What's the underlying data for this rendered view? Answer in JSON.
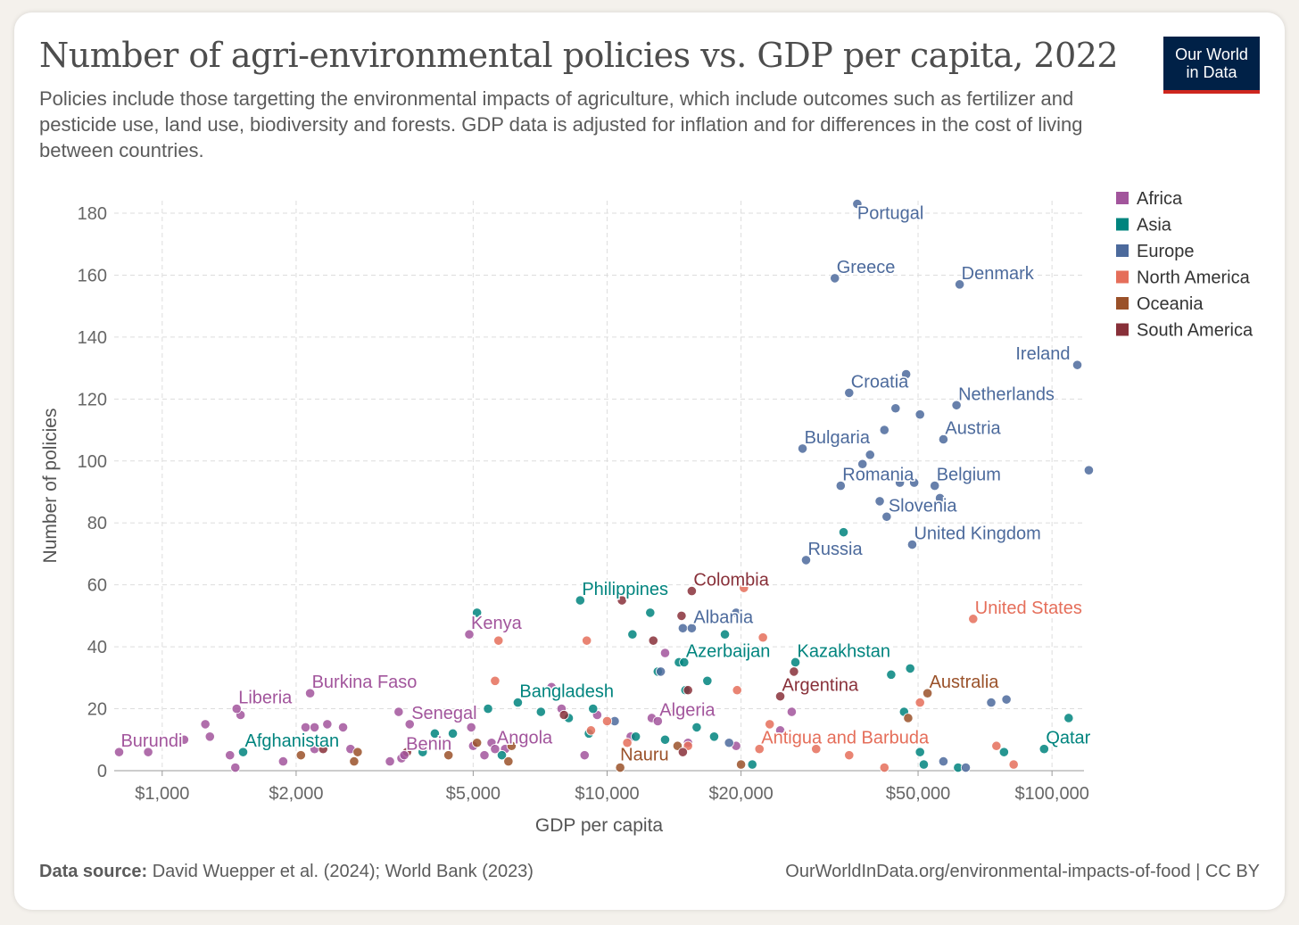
{
  "header": {
    "title": "Number of agri-environmental policies vs. GDP per capita, 2022",
    "subtitle": "Policies include those targetting the environmental impacts of agriculture, which include outcomes such as fertilizer and pesticide use, land use, biodiversity and forests. GDP data is adjusted for inflation and for differences in the cost of living between countries.",
    "logo_line1": "Our World",
    "logo_line2": "in Data"
  },
  "footer": {
    "source_label": "Data source:",
    "source_text": " David Wuepper et al. (2024); World Bank (2023)",
    "url": "OurWorldInData.org/environmental-impacts-of-food | CC BY"
  },
  "chart_data": {
    "type": "scatter",
    "xlabel": "GDP per capita",
    "ylabel": "Number of policies",
    "x_scale": "log",
    "xlim": [
      780,
      118000
    ],
    "ylim": [
      0,
      180
    ],
    "x_ticks": [
      {
        "value": 1000,
        "label": "$1,000"
      },
      {
        "value": 2000,
        "label": "$2,000"
      },
      {
        "value": 5000,
        "label": "$5,000"
      },
      {
        "value": 10000,
        "label": "$10,000"
      },
      {
        "value": 20000,
        "label": "$20,000"
      },
      {
        "value": 50000,
        "label": "$50,000"
      },
      {
        "value": 100000,
        "label": "$100,000"
      }
    ],
    "y_ticks": [
      0,
      20,
      40,
      60,
      80,
      100,
      120,
      140,
      160,
      180
    ],
    "grid": true,
    "legend_position": "right",
    "colors": {
      "Africa": "#a2559c",
      "Asia": "#00847e",
      "Europe": "#4c6a9c",
      "North America": "#e56e5a",
      "Oceania": "#9a5129",
      "South America": "#883039"
    },
    "legend": [
      "Africa",
      "Asia",
      "Europe",
      "North America",
      "Oceania",
      "South America"
    ],
    "labeled_points": [
      {
        "name": "Portugal",
        "region": "Europe",
        "x": 36500,
        "y": 183
      },
      {
        "name": "Greece",
        "region": "Europe",
        "x": 32500,
        "y": 159
      },
      {
        "name": "Denmark",
        "region": "Europe",
        "x": 62000,
        "y": 157
      },
      {
        "name": "Ireland",
        "region": "Europe",
        "x": 114000,
        "y": 131
      },
      {
        "name": "Croatia",
        "region": "Europe",
        "x": 35000,
        "y": 122
      },
      {
        "name": "Netherlands",
        "region": "Europe",
        "x": 61000,
        "y": 118
      },
      {
        "name": "Austria",
        "region": "Europe",
        "x": 57000,
        "y": 107
      },
      {
        "name": "Bulgaria",
        "region": "Europe",
        "x": 27500,
        "y": 104
      },
      {
        "name": "Romania",
        "region": "Europe",
        "x": 33500,
        "y": 92
      },
      {
        "name": "Belgium",
        "region": "Europe",
        "x": 54500,
        "y": 92
      },
      {
        "name": "Slovenia",
        "region": "Europe",
        "x": 42500,
        "y": 82
      },
      {
        "name": "United Kingdom",
        "region": "Europe",
        "x": 48500,
        "y": 73
      },
      {
        "name": "Russia",
        "region": "Europe",
        "x": 28000,
        "y": 68
      },
      {
        "name": "Colombia",
        "region": "South America",
        "x": 15500,
        "y": 58
      },
      {
        "name": "Philippines",
        "region": "Asia",
        "x": 8700,
        "y": 55
      },
      {
        "name": "United States",
        "region": "North America",
        "x": 66500,
        "y": 49
      },
      {
        "name": "Albania",
        "region": "Europe",
        "x": 15500,
        "y": 46
      },
      {
        "name": "Kenya",
        "region": "Africa",
        "x": 4900,
        "y": 44
      },
      {
        "name": "Azerbaijan",
        "region": "Asia",
        "x": 14900,
        "y": 35
      },
      {
        "name": "Kazakhstan",
        "region": "Asia",
        "x": 26500,
        "y": 35
      },
      {
        "name": "Burkina Faso",
        "region": "Africa",
        "x": 2150,
        "y": 25
      },
      {
        "name": "Argentina",
        "region": "South America",
        "x": 24500,
        "y": 24
      },
      {
        "name": "Australia",
        "region": "Oceania",
        "x": 52500,
        "y": 25
      },
      {
        "name": "Bangladesh",
        "region": "Asia",
        "x": 6300,
        "y": 22
      },
      {
        "name": "Liberia",
        "region": "Africa",
        "x": 1470,
        "y": 20
      },
      {
        "name": "Senegal",
        "region": "Africa",
        "x": 3600,
        "y": 15
      },
      {
        "name": "Algeria",
        "region": "Africa",
        "x": 13000,
        "y": 16
      },
      {
        "name": "Burundi",
        "region": "Africa",
        "x": 800,
        "y": 6
      },
      {
        "name": "Afghanistan",
        "region": "Asia",
        "x": 1520,
        "y": 6
      },
      {
        "name": "Benin",
        "region": "Africa",
        "x": 3500,
        "y": 5
      },
      {
        "name": "Angola",
        "region": "Africa",
        "x": 5600,
        "y": 7
      },
      {
        "name": "Antigua and Barbuda",
        "region": "North America",
        "x": 22000,
        "y": 7
      },
      {
        "name": "Qatar",
        "region": "Asia",
        "x": 96000,
        "y": 7
      },
      {
        "name": "Nauru",
        "region": "Oceania",
        "x": 10700,
        "y": 1
      }
    ],
    "points": [
      {
        "region": "Africa",
        "x": 930,
        "y": 6
      },
      {
        "region": "Africa",
        "x": 1120,
        "y": 10
      },
      {
        "region": "Africa",
        "x": 1250,
        "y": 15
      },
      {
        "region": "Africa",
        "x": 1280,
        "y": 11
      },
      {
        "region": "Africa",
        "x": 1420,
        "y": 5
      },
      {
        "region": "Africa",
        "x": 1460,
        "y": 1
      },
      {
        "region": "Africa",
        "x": 1500,
        "y": 18
      },
      {
        "region": "Africa",
        "x": 1870,
        "y": 3
      },
      {
        "region": "Africa",
        "x": 2100,
        "y": 14
      },
      {
        "region": "Africa",
        "x": 2200,
        "y": 14
      },
      {
        "region": "Africa",
        "x": 2350,
        "y": 15
      },
      {
        "region": "Africa",
        "x": 2550,
        "y": 14
      },
      {
        "region": "Africa",
        "x": 2650,
        "y": 7
      },
      {
        "region": "Africa",
        "x": 2200,
        "y": 7
      },
      {
        "region": "Africa",
        "x": 3250,
        "y": 3
      },
      {
        "region": "Africa",
        "x": 3400,
        "y": 19
      },
      {
        "region": "Africa",
        "x": 3450,
        "y": 4
      },
      {
        "region": "Africa",
        "x": 3900,
        "y": 8
      },
      {
        "region": "Africa",
        "x": 4950,
        "y": 14
      },
      {
        "region": "Africa",
        "x": 5000,
        "y": 8
      },
      {
        "region": "Africa",
        "x": 5300,
        "y": 5
      },
      {
        "region": "Africa",
        "x": 5500,
        "y": 9
      },
      {
        "region": "Africa",
        "x": 5900,
        "y": 7
      },
      {
        "region": "Africa",
        "x": 7500,
        "y": 27
      },
      {
        "region": "Africa",
        "x": 7900,
        "y": 20
      },
      {
        "region": "Africa",
        "x": 8900,
        "y": 5
      },
      {
        "region": "Africa",
        "x": 9500,
        "y": 18
      },
      {
        "region": "Africa",
        "x": 11300,
        "y": 11
      },
      {
        "region": "Africa",
        "x": 12600,
        "y": 17
      },
      {
        "region": "Africa",
        "x": 13500,
        "y": 38
      },
      {
        "region": "Africa",
        "x": 15200,
        "y": 9
      },
      {
        "region": "Africa",
        "x": 19500,
        "y": 8
      },
      {
        "region": "Africa",
        "x": 24500,
        "y": 13
      },
      {
        "region": "Africa",
        "x": 26000,
        "y": 19
      },
      {
        "region": "Asia",
        "x": 4100,
        "y": 12
      },
      {
        "region": "Asia",
        "x": 3850,
        "y": 6
      },
      {
        "region": "Asia",
        "x": 4500,
        "y": 12
      },
      {
        "region": "Asia",
        "x": 5100,
        "y": 51
      },
      {
        "region": "Asia",
        "x": 5400,
        "y": 20
      },
      {
        "region": "Asia",
        "x": 5800,
        "y": 5
      },
      {
        "region": "Asia",
        "x": 7100,
        "y": 19
      },
      {
        "region": "Asia",
        "x": 8200,
        "y": 17
      },
      {
        "region": "Asia",
        "x": 9300,
        "y": 20
      },
      {
        "region": "Asia",
        "x": 9100,
        "y": 12
      },
      {
        "region": "Asia",
        "x": 11400,
        "y": 44
      },
      {
        "region": "Asia",
        "x": 11600,
        "y": 11
      },
      {
        "region": "Asia",
        "x": 12500,
        "y": 51
      },
      {
        "region": "Asia",
        "x": 13000,
        "y": 32
      },
      {
        "region": "Asia",
        "x": 13500,
        "y": 10
      },
      {
        "region": "Asia",
        "x": 14500,
        "y": 35
      },
      {
        "region": "Asia",
        "x": 15000,
        "y": 26
      },
      {
        "region": "Asia",
        "x": 15900,
        "y": 14
      },
      {
        "region": "Asia",
        "x": 16800,
        "y": 29
      },
      {
        "region": "Asia",
        "x": 17400,
        "y": 11
      },
      {
        "region": "Asia",
        "x": 18400,
        "y": 44
      },
      {
        "region": "Asia",
        "x": 21200,
        "y": 2
      },
      {
        "region": "Asia",
        "x": 34000,
        "y": 77
      },
      {
        "region": "Asia",
        "x": 43500,
        "y": 31
      },
      {
        "region": "Asia",
        "x": 46500,
        "y": 19
      },
      {
        "region": "Asia",
        "x": 48000,
        "y": 33
      },
      {
        "region": "Asia",
        "x": 50500,
        "y": 6
      },
      {
        "region": "Asia",
        "x": 51500,
        "y": 2
      },
      {
        "region": "Asia",
        "x": 61500,
        "y": 1
      },
      {
        "region": "Asia",
        "x": 78000,
        "y": 6
      },
      {
        "region": "Asia",
        "x": 109000,
        "y": 17
      },
      {
        "region": "Europe",
        "x": 13200,
        "y": 32
      },
      {
        "region": "Europe",
        "x": 14800,
        "y": 46
      },
      {
        "region": "Europe",
        "x": 18800,
        "y": 9
      },
      {
        "region": "Europe",
        "x": 10400,
        "y": 16
      },
      {
        "region": "Europe",
        "x": 19500,
        "y": 51
      },
      {
        "region": "Europe",
        "x": 37500,
        "y": 99
      },
      {
        "region": "Europe",
        "x": 39000,
        "y": 102
      },
      {
        "region": "Europe",
        "x": 41000,
        "y": 87
      },
      {
        "region": "Europe",
        "x": 42000,
        "y": 110
      },
      {
        "region": "Europe",
        "x": 44500,
        "y": 117
      },
      {
        "region": "Europe",
        "x": 45500,
        "y": 93
      },
      {
        "region": "Europe",
        "x": 47000,
        "y": 128
      },
      {
        "region": "Europe",
        "x": 49000,
        "y": 93
      },
      {
        "region": "Europe",
        "x": 50500,
        "y": 115
      },
      {
        "region": "Europe",
        "x": 56000,
        "y": 88
      },
      {
        "region": "Europe",
        "x": 57000,
        "y": 3
      },
      {
        "region": "Europe",
        "x": 64000,
        "y": 1
      },
      {
        "region": "Europe",
        "x": 73000,
        "y": 22
      },
      {
        "region": "Europe",
        "x": 79000,
        "y": 23
      },
      {
        "region": "Europe",
        "x": 121000,
        "y": 97
      },
      {
        "region": "North America",
        "x": 5700,
        "y": 42
      },
      {
        "region": "North America",
        "x": 5600,
        "y": 29
      },
      {
        "region": "North America",
        "x": 9200,
        "y": 13
      },
      {
        "region": "North America",
        "x": 9000,
        "y": 42
      },
      {
        "region": "North America",
        "x": 10000,
        "y": 16
      },
      {
        "region": "North America",
        "x": 11100,
        "y": 9
      },
      {
        "region": "North America",
        "x": 14200,
        "y": 19
      },
      {
        "region": "North America",
        "x": 15200,
        "y": 8
      },
      {
        "region": "North America",
        "x": 19600,
        "y": 26
      },
      {
        "region": "North America",
        "x": 20300,
        "y": 59
      },
      {
        "region": "North America",
        "x": 22400,
        "y": 43
      },
      {
        "region": "North America",
        "x": 23200,
        "y": 15
      },
      {
        "region": "North America",
        "x": 29500,
        "y": 7
      },
      {
        "region": "North America",
        "x": 35000,
        "y": 5
      },
      {
        "region": "North America",
        "x": 42000,
        "y": 1
      },
      {
        "region": "North America",
        "x": 50500,
        "y": 22
      },
      {
        "region": "North America",
        "x": 82000,
        "y": 2
      },
      {
        "region": "North America",
        "x": 75000,
        "y": 8
      },
      {
        "region": "Oceania",
        "x": 2050,
        "y": 5
      },
      {
        "region": "Oceania",
        "x": 2700,
        "y": 3
      },
      {
        "region": "Oceania",
        "x": 2750,
        "y": 6
      },
      {
        "region": "Oceania",
        "x": 4400,
        "y": 5
      },
      {
        "region": "Oceania",
        "x": 5100,
        "y": 9
      },
      {
        "region": "Oceania",
        "x": 6000,
        "y": 3
      },
      {
        "region": "Oceania",
        "x": 6100,
        "y": 8
      },
      {
        "region": "Oceania",
        "x": 14400,
        "y": 8
      },
      {
        "region": "Oceania",
        "x": 20000,
        "y": 2
      },
      {
        "region": "Oceania",
        "x": 47500,
        "y": 17
      },
      {
        "region": "South America",
        "x": 8000,
        "y": 18
      },
      {
        "region": "South America",
        "x": 10800,
        "y": 55
      },
      {
        "region": "South America",
        "x": 12700,
        "y": 42
      },
      {
        "region": "South America",
        "x": 14700,
        "y": 50
      },
      {
        "region": "South America",
        "x": 15200,
        "y": 26
      },
      {
        "region": "South America",
        "x": 14800,
        "y": 6
      },
      {
        "region": "South America",
        "x": 26300,
        "y": 32
      },
      {
        "region": "South America",
        "x": 2300,
        "y": 7
      },
      {
        "region": "South America",
        "x": 3550,
        "y": 6
      }
    ]
  }
}
